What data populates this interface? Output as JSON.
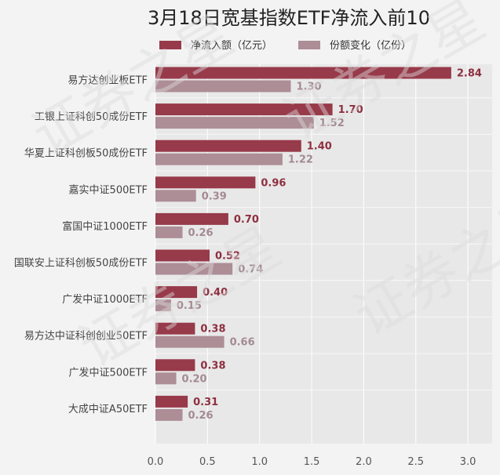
{
  "chart_data": {
    "type": "bar",
    "orientation": "horizontal",
    "title": "3月18日宽基指数ETF净流入前10",
    "categories": [
      "易方达创业板ETF",
      "工银上证科创50成份ETF",
      "华夏上证科创板50成份ETF",
      "嘉实中证500ETF",
      "富国中证1000ETF",
      "国联安上证科创板50成份ETF",
      "广发中证1000ETF",
      "易方达中证科创创业50ETF",
      "广发中证500ETF",
      "大成中证A50ETF"
    ],
    "series": [
      {
        "name": "净流入额（亿元）",
        "color": "#973a4a",
        "values": [
          2.84,
          1.7,
          1.4,
          0.96,
          0.7,
          0.52,
          0.4,
          0.38,
          0.38,
          0.31
        ],
        "labels": [
          "2.84",
          "1.70",
          "1.40",
          "0.96",
          "0.70",
          "0.52",
          "0.40",
          "0.38",
          "0.38",
          "0.31"
        ]
      },
      {
        "name": "份额变化（亿份）",
        "color": "#ad8d96",
        "values": [
          1.3,
          1.52,
          1.22,
          0.39,
          0.26,
          0.74,
          0.15,
          0.66,
          0.2,
          0.26
        ],
        "labels": [
          "1.30",
          "1.52",
          "1.22",
          "0.39",
          "0.26",
          "0.74",
          "0.15",
          "0.66",
          "0.20",
          "0.26"
        ]
      }
    ],
    "xlim": [
      0,
      3.2
    ],
    "xticks": [
      0,
      0.5,
      1,
      1.5,
      2,
      2.5,
      3
    ],
    "xtick_labels": [
      "0.0",
      "0.5",
      "1.0",
      "1.5",
      "2.0",
      "2.5",
      "3.0"
    ],
    "legend_position": "top",
    "grid": true,
    "watermark": "证券之星"
  }
}
